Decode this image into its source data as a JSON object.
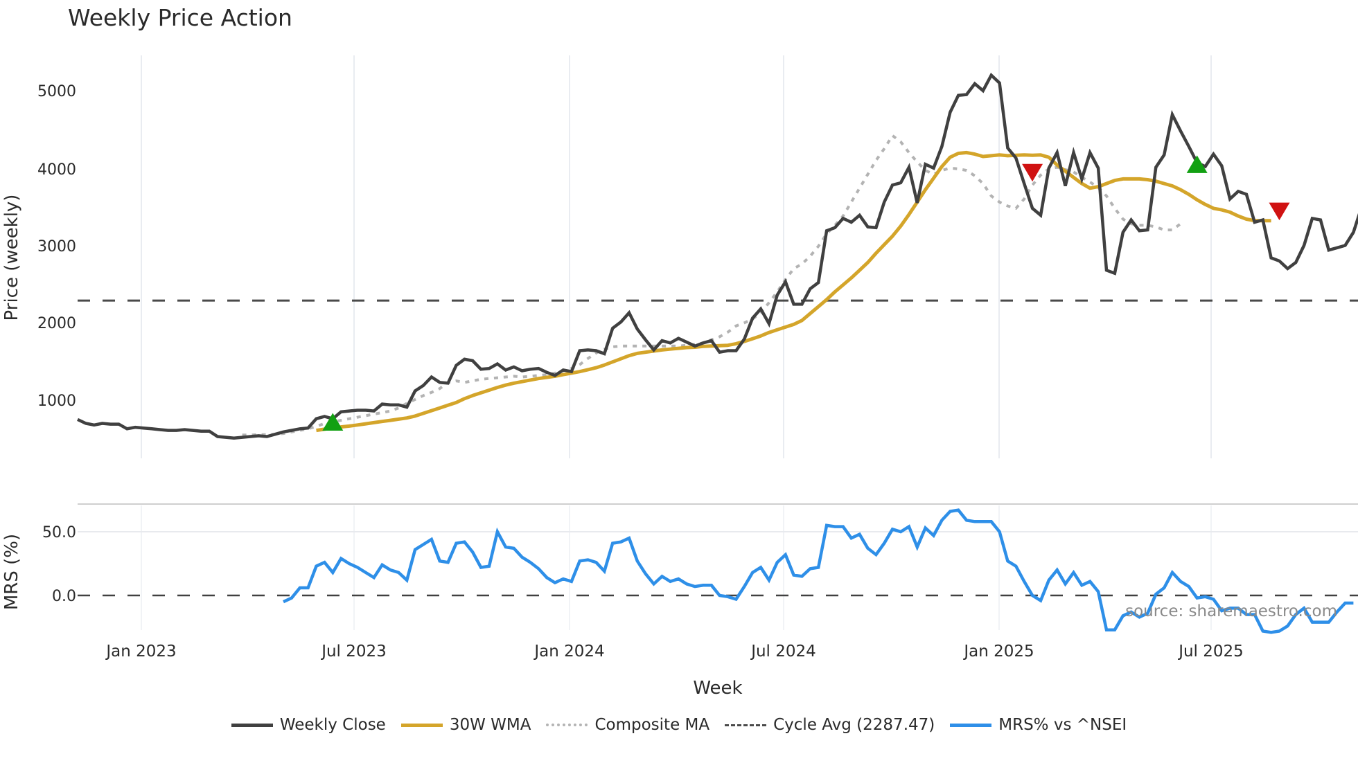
{
  "header": {
    "title": "Weekly Price Action"
  },
  "colors": {
    "close": "#404040",
    "wma": "#d4a52a",
    "composite": "#b3b3b3",
    "cycle": "#4a4a4a",
    "mrs": "#2e8fe8",
    "buy": "#12a012",
    "sell": "#d01212",
    "grid": "#e9ecf1"
  },
  "axes": {
    "price_ylabel": "Price (weekly)",
    "mrs_ylabel": "MRS (%)",
    "xlabel": "Week",
    "price_ticks": [
      "1000",
      "2000",
      "3000",
      "4000",
      "5000"
    ],
    "mrs_ticks": [
      "0.0",
      "50.0"
    ],
    "x_ticks": [
      "Jan 2023",
      "Jul 2023",
      "Jan 2024",
      "Jul 2024",
      "Jan 2025",
      "Jul 2025"
    ]
  },
  "annotation": {
    "source": "source: sharemaestro.com"
  },
  "legend": {
    "items": [
      {
        "label": "Weekly Close"
      },
      {
        "label": "30W WMA"
      },
      {
        "label": "Composite MA"
      },
      {
        "label": "Cycle Avg (2287.47)"
      },
      {
        "label": "MRS% vs ^NSEI"
      }
    ]
  },
  "chart_data": [
    {
      "type": "line",
      "title": "Weekly Price Action",
      "xlabel": "Week",
      "ylabel": "Price (weekly)",
      "ylim": [
        300,
        5450
      ],
      "x_tick_labels": [
        "Jan 2023",
        "Jul 2023",
        "Jan 2024",
        "Jul 2024",
        "Jan 2025",
        "Jul 2025"
      ],
      "grid": "vertical",
      "legend_position": "bottom",
      "reference_lines": [
        {
          "name": "Cycle Avg",
          "value": 2287.47,
          "style": "dashed"
        }
      ],
      "x_start_week_index": 0,
      "week_spacing": "weekly, starting ~early Nov 2022",
      "series": [
        {
          "name": "Weekly Close",
          "values": [
            750,
            700,
            680,
            700,
            690,
            690,
            630,
            650,
            640,
            630,
            620,
            610,
            610,
            620,
            610,
            600,
            600,
            530,
            520,
            510,
            520,
            530,
            540,
            530,
            560,
            590,
            610,
            630,
            640,
            760,
            790,
            760,
            850,
            860,
            870,
            870,
            860,
            950,
            940,
            940,
            910,
            1120,
            1190,
            1300,
            1230,
            1220,
            1450,
            1530,
            1510,
            1400,
            1410,
            1470,
            1390,
            1430,
            1380,
            1400,
            1410,
            1360,
            1320,
            1390,
            1370,
            1640,
            1650,
            1640,
            1600,
            1930,
            2010,
            2130,
            1920,
            1780,
            1650,
            1770,
            1740,
            1800,
            1750,
            1700,
            1740,
            1770,
            1620,
            1640,
            1640,
            1790,
            2060,
            2180,
            1990,
            2360,
            2530,
            2240,
            2240,
            2440,
            2520,
            3190,
            3230,
            3350,
            3300,
            3390,
            3240,
            3230,
            3560,
            3780,
            3810,
            4010,
            3550,
            4050,
            4000,
            4280,
            4720,
            4940,
            4950,
            5090,
            5000,
            5200,
            5100,
            4260,
            4130,
            3800,
            3480,
            3390,
            4000,
            4200,
            3770,
            4200,
            3860,
            4200,
            4000,
            2680,
            2640,
            3170,
            3330,
            3190,
            3200,
            4010,
            4170,
            4690,
            4480,
            4280,
            4070,
            4020,
            4180,
            4030,
            3600,
            3700,
            3660,
            3300,
            3330,
            2840,
            2800,
            2700,
            2780,
            3000,
            3350,
            3330,
            2940,
            2970,
            3000,
            3170,
            3500,
            3420
          ]
        },
        {
          "name": "30W WMA",
          "start_index": 29,
          "values": [
            610,
            625,
            640,
            655,
            665,
            680,
            695,
            710,
            725,
            740,
            755,
            770,
            795,
            830,
            865,
            900,
            935,
            970,
            1020,
            1060,
            1095,
            1130,
            1165,
            1195,
            1220,
            1240,
            1260,
            1280,
            1295,
            1310,
            1330,
            1350,
            1370,
            1395,
            1420,
            1455,
            1495,
            1535,
            1575,
            1605,
            1620,
            1635,
            1650,
            1660,
            1670,
            1680,
            1685,
            1695,
            1700,
            1705,
            1710,
            1730,
            1760,
            1795,
            1830,
            1875,
            1910,
            1945,
            1980,
            2030,
            2120,
            2210,
            2300,
            2400,
            2490,
            2580,
            2680,
            2780,
            2900,
            3010,
            3120,
            3250,
            3400,
            3560,
            3720,
            3870,
            4020,
            4140,
            4190,
            4200,
            4180,
            4150,
            4160,
            4170,
            4160,
            4165,
            4170,
            4165,
            4170,
            4140,
            4040,
            3960,
            3880,
            3800,
            3740,
            3760,
            3800,
            3840,
            3860,
            3860,
            3860,
            3850,
            3830,
            3800,
            3770,
            3720,
            3660,
            3590,
            3530,
            3480,
            3460,
            3430,
            3380,
            3340,
            3320,
            3320,
            3320
          ]
        },
        {
          "name": "Composite MA",
          "start_index": 20,
          "values": [
            550,
            550,
            555,
            555,
            560,
            570,
            590,
            610,
            630,
            660,
            700,
            720,
            740,
            760,
            780,
            800,
            820,
            840,
            860,
            900,
            960,
            1010,
            1060,
            1100,
            1150,
            1230,
            1250,
            1230,
            1250,
            1270,
            1280,
            1290,
            1300,
            1310,
            1300,
            1310,
            1320,
            1330,
            1350,
            1380,
            1410,
            1460,
            1540,
            1610,
            1660,
            1690,
            1700,
            1700,
            1700,
            1700,
            1700,
            1700,
            1700,
            1700,
            1710,
            1720,
            1740,
            1780,
            1820,
            1880,
            1960,
            2000,
            2050,
            2130,
            2260,
            2400,
            2560,
            2700,
            2760,
            2860,
            2990,
            3150,
            3260,
            3380,
            3560,
            3740,
            3920,
            4100,
            4250,
            4420,
            4340,
            4200,
            4080,
            3970,
            3920,
            3970,
            4000,
            3990,
            3970,
            3900,
            3800,
            3640,
            3560,
            3510,
            3480,
            3600,
            3780,
            3910,
            3990,
            4010,
            3980,
            3950,
            3880,
            3820,
            3750,
            3640,
            3480,
            3340,
            3280,
            3260,
            3260,
            3240,
            3200,
            3200,
            3280
          ]
        }
      ],
      "markers": [
        {
          "type": "buy",
          "shape": "triangle-up",
          "x_index": 31,
          "price": 700
        },
        {
          "type": "sell",
          "shape": "triangle-down",
          "x_index": 116,
          "price": 3960
        },
        {
          "type": "buy",
          "shape": "triangle-up",
          "x_index": 136,
          "price": 4030
        },
        {
          "type": "sell",
          "shape": "triangle-down",
          "x_index": 146,
          "price": 3460
        }
      ]
    },
    {
      "type": "line",
      "title": "",
      "ylabel": "MRS (%)",
      "ylim": [
        -35,
        72
      ],
      "reference_lines": [
        {
          "value": 0,
          "style": "dashed"
        }
      ],
      "series": [
        {
          "name": "MRS% vs ^NSEI",
          "start_index": 25,
          "values": [
            -5,
            -2,
            6,
            6,
            23,
            26,
            18,
            29,
            25,
            22,
            18,
            14,
            24,
            20,
            18,
            12,
            36,
            40,
            44,
            27,
            26,
            41,
            42,
            34,
            22,
            23,
            50,
            38,
            37,
            30,
            26,
            21,
            14,
            10,
            13,
            11,
            27,
            28,
            26,
            19,
            41,
            42,
            45,
            27,
            17,
            9,
            15,
            11,
            13,
            9,
            7,
            8,
            8,
            0,
            -1,
            -3,
            7,
            18,
            22,
            12,
            26,
            32,
            16,
            15,
            21,
            22,
            55,
            54,
            54,
            45,
            48,
            37,
            32,
            41,
            52,
            50,
            54,
            38,
            53,
            47,
            59,
            66,
            67,
            59,
            58,
            58,
            58,
            50,
            27,
            23,
            11,
            0,
            -4,
            12,
            20,
            9,
            18,
            8,
            11,
            3,
            -27,
            -27,
            -16,
            -13,
            -17,
            -14,
            1,
            6,
            18,
            11,
            7,
            -2,
            -1,
            -3,
            -12,
            -10,
            -10,
            -15,
            -15,
            -28,
            -29,
            -28,
            -24,
            -15,
            -10,
            -21,
            -21,
            -21,
            -13,
            -6,
            -6
          ]
        }
      ]
    }
  ]
}
